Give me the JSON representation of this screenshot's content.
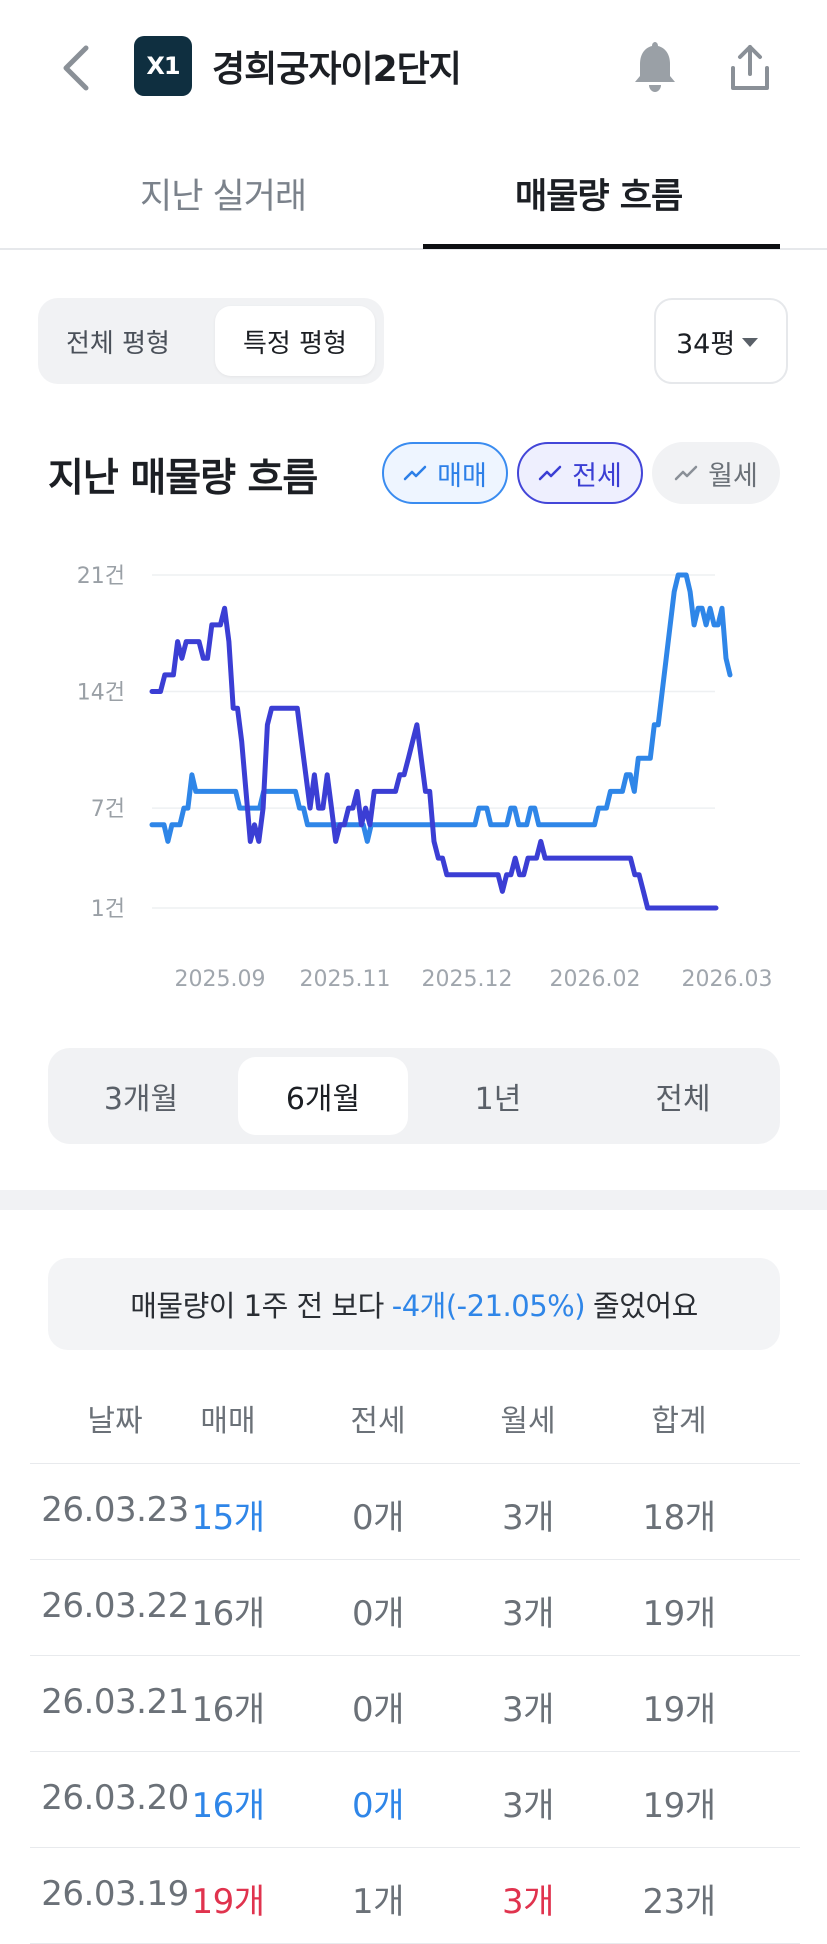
{
  "header": {
    "logo_text": "X1",
    "title": "경희궁자이2단지"
  },
  "tabs": [
    {
      "label": "지난 실거래"
    },
    {
      "label": "매물량 흐름"
    }
  ],
  "pyeong_toggle": {
    "all_label": "전체 평형",
    "specific_label": "특정 평형",
    "selected_size": "34평"
  },
  "section": {
    "title": "지난 매물량 흐름"
  },
  "filters": [
    {
      "label": "매매",
      "active": true,
      "color": "#2f86e8"
    },
    {
      "label": "전세",
      "active": true,
      "color": "#3b3ed4"
    },
    {
      "label": "월세",
      "active": false,
      "color": "#9aa0a6"
    }
  ],
  "chart_data": {
    "type": "line",
    "y_ticks": [
      "21건",
      "14건",
      "7건",
      "1건"
    ],
    "ylim": [
      1,
      21
    ],
    "x_ticks": [
      "2025.09",
      "2025.11",
      "2025.12",
      "2026.02",
      "2026.03"
    ],
    "grid": true,
    "series": [
      {
        "name": "매매",
        "color": "#2f86e8",
        "values": [
          6,
          6,
          6,
          6,
          5,
          6,
          6,
          6,
          7,
          7,
          9,
          8,
          8,
          8,
          8,
          8,
          8,
          8,
          8,
          8,
          8,
          8,
          7,
          7,
          7,
          7,
          7,
          7,
          8,
          8,
          8,
          8,
          8,
          8,
          8,
          8,
          8,
          7,
          7,
          6,
          6,
          6,
          6,
          6,
          6,
          6,
          6,
          6,
          6,
          6,
          6,
          6,
          6,
          6,
          5,
          6,
          6,
          6,
          6,
          6,
          6,
          6,
          6,
          6,
          6,
          6,
          6,
          6,
          6,
          6,
          6,
          6,
          6,
          6,
          6,
          6,
          6,
          6,
          6,
          6,
          6,
          6,
          7,
          7,
          7,
          6,
          6,
          6,
          6,
          6,
          7,
          7,
          6,
          6,
          6,
          7,
          7,
          6,
          6,
          6,
          6,
          6,
          6,
          6,
          6,
          6,
          6,
          6,
          6,
          6,
          6,
          6,
          7,
          7,
          7,
          8,
          8,
          8,
          8,
          9,
          9,
          8,
          10,
          10,
          10,
          10,
          12,
          12,
          14,
          16,
          18,
          20,
          21,
          21,
          21,
          20,
          18,
          19,
          19,
          18,
          19,
          18,
          18,
          19,
          16,
          15
        ]
      },
      {
        "name": "전세",
        "color": "#3b3ed4",
        "values": [
          14,
          14,
          14,
          15,
          15,
          15,
          17,
          16,
          17,
          17,
          17,
          17,
          16,
          16,
          18,
          18,
          18,
          19,
          17,
          13,
          13,
          11,
          8,
          5,
          6,
          5,
          7,
          12,
          13,
          13,
          13,
          13,
          13,
          13,
          13,
          11,
          9,
          7,
          9,
          7,
          7,
          9,
          7,
          5,
          6,
          6,
          7,
          7,
          8,
          6,
          7,
          6,
          8,
          8,
          8,
          8,
          8,
          8,
          9,
          9,
          10,
          11,
          12,
          10,
          8,
          8,
          5,
          4,
          4,
          3,
          3,
          3,
          3,
          3,
          3,
          3,
          3,
          3,
          3,
          3,
          3,
          3,
          2,
          3,
          3,
          4,
          3,
          3,
          4,
          4,
          4,
          5,
          4,
          4,
          4,
          4,
          4,
          4,
          4,
          4,
          4,
          4,
          4,
          4,
          4,
          4,
          4,
          4,
          4,
          4,
          4,
          4,
          4,
          3,
          3,
          2,
          1,
          1,
          1,
          1,
          1,
          1,
          1,
          1,
          1,
          1,
          1,
          1,
          1,
          1,
          1,
          1,
          1
        ]
      }
    ]
  },
  "period": {
    "options": [
      "3개월",
      "6개월",
      "1년",
      "전체"
    ],
    "selected": "6개월"
  },
  "summary": {
    "prefix": "매물량이 1주 전 보다",
    "change": "-4개(-21.05%)",
    "suffix": "줄었어요"
  },
  "table": {
    "headers": [
      "날짜",
      "매매",
      "전세",
      "월세",
      "합계"
    ],
    "rows": [
      {
        "date": "26.03.23",
        "sale": "15개",
        "jeonse": "0개",
        "monthly": "3개",
        "total": "18개"
      },
      {
        "date": "26.03.22",
        "sale": "16개",
        "jeonse": "0개",
        "monthly": "3개",
        "total": "19개"
      },
      {
        "date": "26.03.21",
        "sale": "16개",
        "jeonse": "0개",
        "monthly": "3개",
        "total": "19개"
      },
      {
        "date": "26.03.20",
        "sale": "16개",
        "jeonse": "0개",
        "monthly": "3개",
        "total": "19개"
      },
      {
        "date": "26.03.19",
        "sale": "19개",
        "jeonse": "1개",
        "monthly": "3개",
        "total": "23개"
      }
    ]
  },
  "icons": [
    "chevron-left-icon",
    "bell-icon",
    "share-icon",
    "trend-icon",
    "chevron-down-icon"
  ]
}
